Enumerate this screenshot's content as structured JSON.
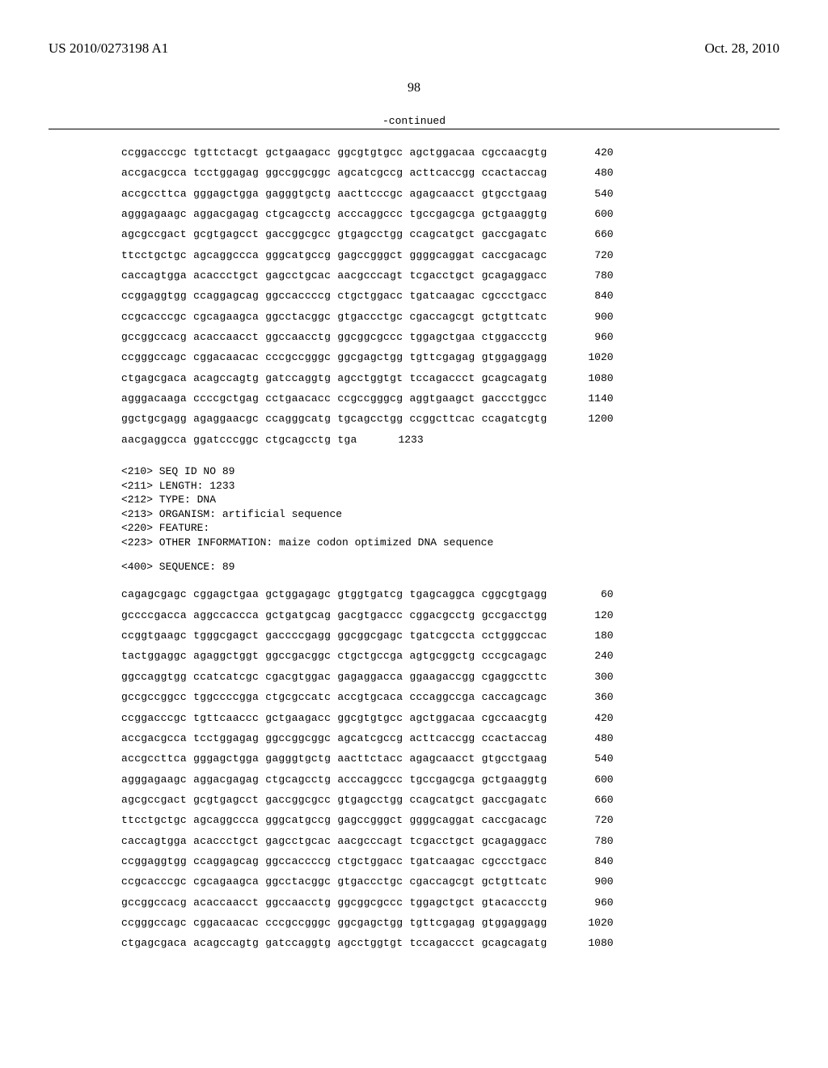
{
  "header": {
    "left": "US 2010/0273198 A1",
    "right": "Oct. 28, 2010"
  },
  "page_number": "98",
  "continued_label": "-continued",
  "seq_block_1": {
    "rows": [
      {
        "groups": [
          "ccggacccgc",
          "tgttctacgt",
          "gctgaagacc",
          "ggcgtgtgcc",
          "agctggacaa",
          "cgccaacgtg"
        ],
        "num": "420"
      },
      {
        "groups": [
          "accgacgcca",
          "tcctggagag",
          "ggccggcggc",
          "agcatcgccg",
          "acttcaccgg",
          "ccactaccag"
        ],
        "num": "480"
      },
      {
        "groups": [
          "accgccttca",
          "gggagctgga",
          "gagggtgctg",
          "aacttcccgc",
          "agagcaacct",
          "gtgcctgaag"
        ],
        "num": "540"
      },
      {
        "groups": [
          "agggagaagc",
          "aggacgagag",
          "ctgcagcctg",
          "acccaggccc",
          "tgccgagcga",
          "gctgaaggtg"
        ],
        "num": "600"
      },
      {
        "groups": [
          "agcgccgact",
          "gcgtgagcct",
          "gaccggcgcc",
          "gtgagcctgg",
          "ccagcatgct",
          "gaccgagatc"
        ],
        "num": "660"
      },
      {
        "groups": [
          "ttcctgctgc",
          "agcaggccca",
          "gggcatgccg",
          "gagccgggct",
          "ggggcaggat",
          "caccgacagc"
        ],
        "num": "720"
      },
      {
        "groups": [
          "caccagtgga",
          "acaccctgct",
          "gagcctgcac",
          "aacgcccagt",
          "tcgacctgct",
          "gcagaggacc"
        ],
        "num": "780"
      },
      {
        "groups": [
          "ccggaggtgg",
          "ccaggagcag",
          "ggccaccccg",
          "ctgctggacc",
          "tgatcaagac",
          "cgccctgacc"
        ],
        "num": "840"
      },
      {
        "groups": [
          "ccgcacccgc",
          "cgcagaagca",
          "ggcctacggc",
          "gtgaccctgc",
          "cgaccagcgt",
          "gctgttcatc"
        ],
        "num": "900"
      },
      {
        "groups": [
          "gccggccacg",
          "acaccaacct",
          "ggccaacctg",
          "ggcggcgccc",
          "tggagctgaa",
          "ctggaccctg"
        ],
        "num": "960"
      },
      {
        "groups": [
          "ccgggccagc",
          "cggacaacac",
          "cccgccgggc",
          "ggcgagctgg",
          "tgttcgagag",
          "gtggaggagg"
        ],
        "num": "1020"
      },
      {
        "groups": [
          "ctgagcgaca",
          "acagccagtg",
          "gatccaggtg",
          "agcctggtgt",
          "tccagaccct",
          "gcagcagatg"
        ],
        "num": "1080"
      },
      {
        "groups": [
          "agggacaaga",
          "ccccgctgag",
          "cctgaacacc",
          "ccgccgggcg",
          "aggtgaagct",
          "gaccctggcc"
        ],
        "num": "1140"
      },
      {
        "groups": [
          "ggctgcgagg",
          "agaggaacgc",
          "ccagggcatg",
          "tgcagcctgg",
          "ccggcttcac",
          "ccagatcgtg"
        ],
        "num": "1200"
      },
      {
        "groups": [
          "aacgaggcca",
          "ggatcccggc",
          "ctgcagcctg",
          "tga"
        ],
        "num": "1233"
      }
    ]
  },
  "meta": {
    "lines": [
      "<210> SEQ ID NO 89",
      "<211> LENGTH: 1233",
      "<212> TYPE: DNA",
      "<213> ORGANISM: artificial sequence",
      "<220> FEATURE:",
      "<223> OTHER INFORMATION: maize codon optimized DNA sequence"
    ]
  },
  "sequence_label": "<400> SEQUENCE: 89",
  "seq_block_2": {
    "rows": [
      {
        "groups": [
          "cagagcgagc",
          "cggagctgaa",
          "gctggagagc",
          "gtggtgatcg",
          "tgagcaggca",
          "cggcgtgagg"
        ],
        "num": "60"
      },
      {
        "groups": [
          "gccccgacca",
          "aggccaccca",
          "gctgatgcag",
          "gacgtgaccc",
          "cggacgcctg",
          "gccgacctgg"
        ],
        "num": "120"
      },
      {
        "groups": [
          "ccggtgaagc",
          "tgggcgagct",
          "gaccccgagg",
          "ggcggcgagc",
          "tgatcgccta",
          "cctgggccac"
        ],
        "num": "180"
      },
      {
        "groups": [
          "tactggaggc",
          "agaggctggt",
          "ggccgacggc",
          "ctgctgccga",
          "agtgcggctg",
          "cccgcagagc"
        ],
        "num": "240"
      },
      {
        "groups": [
          "ggccaggtgg",
          "ccatcatcgc",
          "cgacgtggac",
          "gagaggacca",
          "ggaagaccgg",
          "cgaggccttc"
        ],
        "num": "300"
      },
      {
        "groups": [
          "gccgccggcc",
          "tggccccgga",
          "ctgcgccatc",
          "accgtgcaca",
          "cccaggccga",
          "caccagcagc"
        ],
        "num": "360"
      },
      {
        "groups": [
          "ccggacccgc",
          "tgttcaaccc",
          "gctgaagacc",
          "ggcgtgtgcc",
          "agctggacaa",
          "cgccaacgtg"
        ],
        "num": "420"
      },
      {
        "groups": [
          "accgacgcca",
          "tcctggagag",
          "ggccggcggc",
          "agcatcgccg",
          "acttcaccgg",
          "ccactaccag"
        ],
        "num": "480"
      },
      {
        "groups": [
          "accgccttca",
          "gggagctgga",
          "gagggtgctg",
          "aacttctacc",
          "agagcaacct",
          "gtgcctgaag"
        ],
        "num": "540"
      },
      {
        "groups": [
          "agggagaagc",
          "aggacgagag",
          "ctgcagcctg",
          "acccaggccc",
          "tgccgagcga",
          "gctgaaggtg"
        ],
        "num": "600"
      },
      {
        "groups": [
          "agcgccgact",
          "gcgtgagcct",
          "gaccggcgcc",
          "gtgagcctgg",
          "ccagcatgct",
          "gaccgagatc"
        ],
        "num": "660"
      },
      {
        "groups": [
          "ttcctgctgc",
          "agcaggccca",
          "gggcatgccg",
          "gagccgggct",
          "ggggcaggat",
          "caccgacagc"
        ],
        "num": "720"
      },
      {
        "groups": [
          "caccagtgga",
          "acaccctgct",
          "gagcctgcac",
          "aacgcccagt",
          "tcgacctgct",
          "gcagaggacc"
        ],
        "num": "780"
      },
      {
        "groups": [
          "ccggaggtgg",
          "ccaggagcag",
          "ggccaccccg",
          "ctgctggacc",
          "tgatcaagac",
          "cgccctgacc"
        ],
        "num": "840"
      },
      {
        "groups": [
          "ccgcacccgc",
          "cgcagaagca",
          "ggcctacggc",
          "gtgaccctgc",
          "cgaccagcgt",
          "gctgttcatc"
        ],
        "num": "900"
      },
      {
        "groups": [
          "gccggccacg",
          "acaccaacct",
          "ggccaacctg",
          "ggcggcgccc",
          "tggagctgct",
          "gtacaccctg"
        ],
        "num": "960"
      },
      {
        "groups": [
          "ccgggccagc",
          "cggacaacac",
          "cccgccgggc",
          "ggcgagctgg",
          "tgttcgagag",
          "gtggaggagg"
        ],
        "num": "1020"
      },
      {
        "groups": [
          "ctgagcgaca",
          "acagccagtg",
          "gatccaggtg",
          "agcctggtgt",
          "tccagaccct",
          "gcagcagatg"
        ],
        "num": "1080"
      }
    ]
  }
}
